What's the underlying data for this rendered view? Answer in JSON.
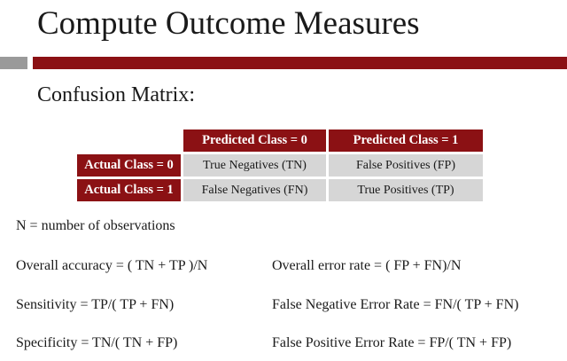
{
  "slide": {
    "title": "Compute Outcome Measures",
    "subtitle": "Confusion Matrix:"
  },
  "matrix": {
    "col_headers": [
      "Predicted Class = 0",
      "Predicted Class = 1"
    ],
    "rows": [
      {
        "label": "Actual Class = 0",
        "cells": [
          "True Negatives (TN)",
          "False Positives (FP)"
        ]
      },
      {
        "label": "Actual Class = 1",
        "cells": [
          "False Negatives (FN)",
          "True Positives (TP)"
        ]
      }
    ]
  },
  "definitions": {
    "n_def": "N = number of observations",
    "accuracy": "Overall accuracy = ( TN + TP )/N",
    "error_rate": "Overall error rate = ( FP + FN)/N",
    "sensitivity": "Sensitivity = TP/( TP + FN)",
    "fn_error_rate": "False Negative Error Rate = FN/( TP + FN)",
    "specificity": "Specificity = TN/( TN + FP)",
    "fp_error_rate": "False Positive Error Rate = FP/( TN + FP)"
  },
  "colors": {
    "accent": "#8b1114",
    "gray_bar": "#9a9a9a",
    "cell_bg": "#d6d6d6"
  }
}
